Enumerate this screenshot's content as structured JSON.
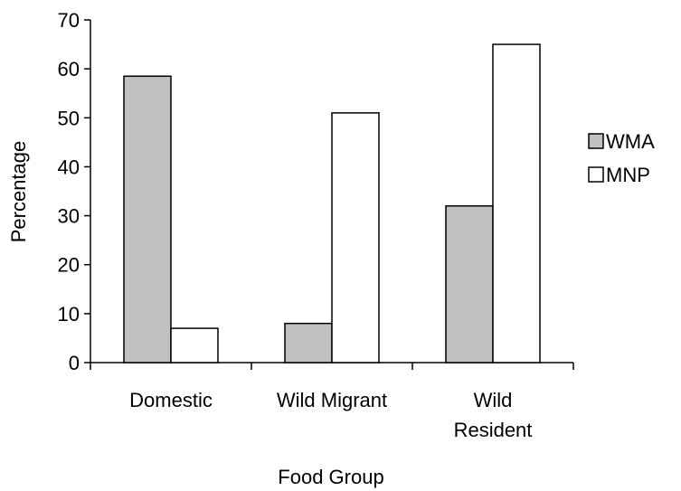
{
  "chart_data": {
    "type": "bar",
    "title": "",
    "xlabel": "Food Group",
    "ylabel": "Percentage",
    "categories": [
      "Domestic",
      "Wild Migrant",
      "Wild Resident"
    ],
    "category_lines": [
      [
        "Domestic"
      ],
      [
        "Wild Migrant"
      ],
      [
        "Wild",
        "Resident"
      ]
    ],
    "series": [
      {
        "name": "WMA",
        "values": [
          58.5,
          8,
          32
        ],
        "color": "#c0c0c0"
      },
      {
        "name": "MNP",
        "values": [
          7,
          51,
          65
        ],
        "color": "#ffffff"
      }
    ],
    "ylim": [
      0,
      70
    ],
    "yticks": [
      0,
      10,
      20,
      30,
      40,
      50,
      60,
      70
    ],
    "grid": false,
    "legend_position": "right"
  }
}
